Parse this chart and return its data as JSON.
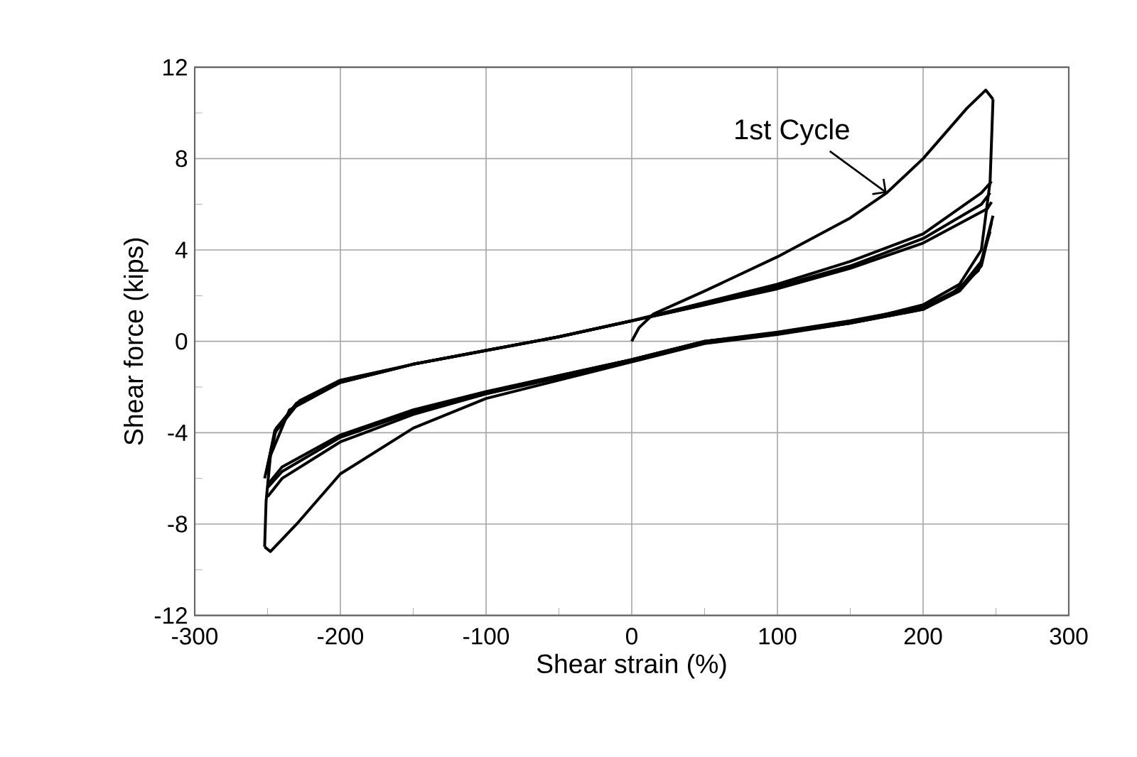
{
  "chart_data": {
    "type": "line",
    "xlabel": "Shear strain (%)",
    "ylabel": "Shear force (kips)",
    "xlim": [
      -300,
      300
    ],
    "xticks": [
      -300,
      -200,
      -100,
      0,
      100,
      200,
      300
    ],
    "ylim": [
      -12,
      12
    ],
    "yticks": [
      -12,
      -8,
      -4,
      0,
      4,
      8,
      12
    ],
    "grid": true,
    "marker": "none",
    "line_style": "solid",
    "annotations": [
      {
        "text": "1st Cycle",
        "x": 175,
        "y": 6.5
      }
    ],
    "series": [
      {
        "color": "#000000",
        "x": [
          0,
          5,
          15,
          50,
          100,
          150,
          175,
          200,
          230,
          243,
          248
        ],
        "values": [
          0,
          0.6,
          1.2,
          2.2,
          3.7,
          5.4,
          6.5,
          8.0,
          10.2,
          11.0,
          10.6
        ]
      },
      {
        "color": "#000000",
        "x": [
          248,
          246,
          240,
          225,
          200,
          150,
          100,
          50,
          0,
          -50,
          -100,
          -150,
          -200,
          -230,
          -248,
          -252
        ],
        "values": [
          10.6,
          7,
          4,
          2.5,
          1.6,
          0.8,
          0.3,
          -0.1,
          -0.9,
          -1.7,
          -2.5,
          -3.8,
          -5.8,
          -8,
          -9.2,
          -9
        ]
      },
      {
        "color": "#000000",
        "x": [
          -252,
          -251,
          -248,
          -235,
          -200,
          -150,
          -100,
          -50,
          0,
          50,
          100,
          150,
          200,
          240,
          247
        ],
        "values": [
          -9,
          -7,
          -5,
          -3,
          -1.8,
          -1,
          -0.4,
          0.2,
          0.9,
          1.7,
          2.5,
          3.5,
          4.7,
          6.5,
          7.0
        ]
      },
      {
        "color": "#000000",
        "x": [
          248,
          240,
          225,
          200,
          150,
          100,
          50,
          0,
          -50,
          -100,
          -150,
          -200,
          -240,
          -250
        ],
        "values": [
          5.5,
          3.5,
          2.3,
          1.5,
          0.9,
          0.4,
          0,
          -0.8,
          -1.6,
          -2.3,
          -3.2,
          -4.4,
          -6,
          -6.8
        ]
      },
      {
        "color": "#000000",
        "x": [
          -252,
          -245,
          -230,
          -200,
          -150,
          -100,
          -50,
          0,
          50,
          100,
          150,
          200,
          240,
          246
        ],
        "values": [
          -6,
          -4,
          -2.8,
          -1.8,
          -1.0,
          -0.4,
          0.2,
          0.9,
          1.6,
          2.4,
          3.3,
          4.5,
          6.0,
          6.5
        ]
      },
      {
        "color": "#000000",
        "x": [
          247,
          240,
          225,
          200,
          150,
          100,
          50,
          0,
          -50,
          -100,
          -150,
          -200,
          -240,
          -250
        ],
        "values": [
          5.2,
          3.3,
          2.2,
          1.4,
          0.8,
          0.35,
          0,
          -0.8,
          -1.5,
          -2.3,
          -3.1,
          -4.2,
          -5.7,
          -6.4
        ]
      },
      {
        "color": "#000000",
        "x": [
          -251,
          -245,
          -230,
          -200,
          -150,
          -100,
          -50,
          0,
          50,
          100,
          150,
          200,
          244,
          247
        ],
        "values": [
          -5.8,
          -3.9,
          -2.7,
          -1.8,
          -1.0,
          -0.4,
          0.2,
          0.9,
          1.6,
          2.3,
          3.2,
          4.3,
          5.8,
          6.1
        ]
      },
      {
        "color": "#000000",
        "x": [
          246,
          238,
          220,
          200,
          150,
          100,
          50,
          0,
          -50,
          -100,
          -150,
          -200,
          -240,
          -249
        ],
        "values": [
          4.8,
          3.1,
          2.1,
          1.4,
          0.8,
          0.35,
          0,
          -0.8,
          -1.5,
          -2.2,
          -3.0,
          -4.1,
          -5.5,
          -6.2
        ]
      },
      {
        "color": "#000000",
        "x": [
          -250,
          -244,
          -228,
          -200,
          -150,
          -100,
          -50,
          0
        ],
        "values": [
          -5.6,
          -3.8,
          -2.6,
          -1.7,
          -1.0,
          -0.4,
          0.2,
          0.9
        ]
      }
    ]
  }
}
